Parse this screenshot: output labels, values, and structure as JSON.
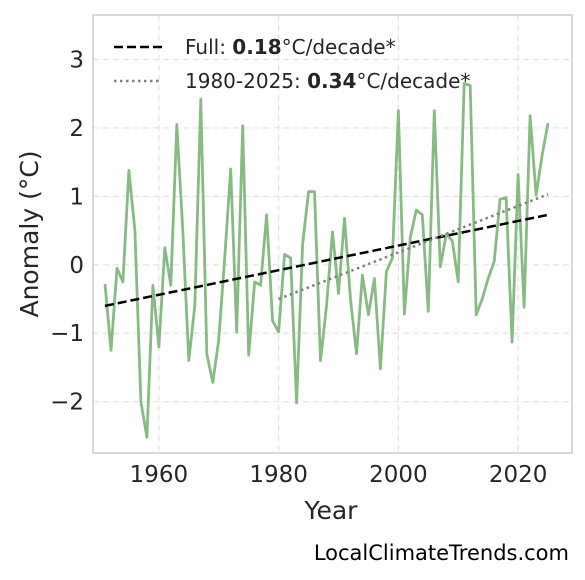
{
  "chart_data": {
    "type": "line",
    "title": "",
    "xlabel": "Year",
    "ylabel": "Anomaly (°C)",
    "xlim": [
      1949,
      2029
    ],
    "ylim": [
      -2.75,
      3.65
    ],
    "xticks": [
      1960,
      1980,
      2000,
      2020
    ],
    "yticks": [
      -2,
      -1,
      0,
      1,
      2,
      3
    ],
    "ytick_labels": [
      "−2",
      "−1",
      "0",
      "1",
      "2",
      "3"
    ],
    "grid": true,
    "legend_position": "top-left",
    "credit": "LocalClimateTrends.com",
    "colors": {
      "series": "#88bb84",
      "full_trend": "#000000",
      "recent_trend": "#808080",
      "grid": "#e2e2e2",
      "spine": "#cccccc"
    },
    "series": [
      {
        "x": [
          1951,
          1952,
          1953,
          1954,
          1955,
          1956,
          1957,
          1958,
          1959,
          1960,
          1961,
          1962,
          1963,
          1964,
          1965,
          1966,
          1967,
          1968,
          1969,
          1970,
          1971,
          1972,
          1973,
          1974,
          1975,
          1976,
          1977,
          1978,
          1979,
          1980,
          1981,
          1982,
          1983,
          1984,
          1985,
          1986,
          1987,
          1988,
          1989,
          1990,
          1991,
          1992,
          1993,
          1994,
          1995,
          1996,
          1997,
          1998,
          1999,
          2000,
          2001,
          2002,
          2003,
          2004,
          2005,
          2006,
          2007,
          2008,
          2009,
          2010,
          2011,
          2012,
          2013,
          2014,
          2015,
          2016,
          2017,
          2018,
          2019,
          2020,
          2021,
          2022,
          2023,
          2024,
          2025
        ],
        "values": [
          -0.28,
          -1.25,
          -0.05,
          -0.25,
          1.38,
          0.5,
          -2.0,
          -2.52,
          -0.3,
          -1.2,
          0.25,
          -0.3,
          2.05,
          0.5,
          -1.4,
          -0.6,
          2.42,
          -1.3,
          -1.72,
          -1.1,
          0.1,
          1.4,
          -0.98,
          2.03,
          -1.32,
          -0.25,
          -0.3,
          0.73,
          -0.82,
          -0.98,
          0.15,
          0.1,
          -2.02,
          0.3,
          1.07,
          1.07,
          -1.4,
          -0.6,
          0.48,
          -0.42,
          0.68,
          -0.5,
          -1.3,
          -0.15,
          -0.73,
          -0.2,
          -1.52,
          -0.1,
          0.1,
          2.25,
          -0.72,
          0.4,
          0.8,
          0.73,
          -0.68,
          2.25,
          -0.03,
          0.45,
          0.35,
          -0.25,
          2.65,
          2.62,
          -0.73,
          -0.5,
          -0.2,
          0.05,
          0.96,
          0.98,
          -1.13,
          1.32,
          -0.62,
          2.18,
          1.02,
          1.6,
          2.07
        ]
      }
    ],
    "trends": [
      {
        "label_prefix": "Full: ",
        "label_value": "0.18",
        "label_suffix": "°C/decade*",
        "style": "dashed",
        "x": [
          1951,
          2025
        ],
        "y": [
          -0.6,
          0.73
        ]
      },
      {
        "label_prefix": "1980-2025: ",
        "label_value": "0.34",
        "label_suffix": "°C/decade*",
        "style": "dotted",
        "x": [
          1980,
          2025
        ],
        "y": [
          -0.5,
          1.03
        ]
      }
    ]
  }
}
